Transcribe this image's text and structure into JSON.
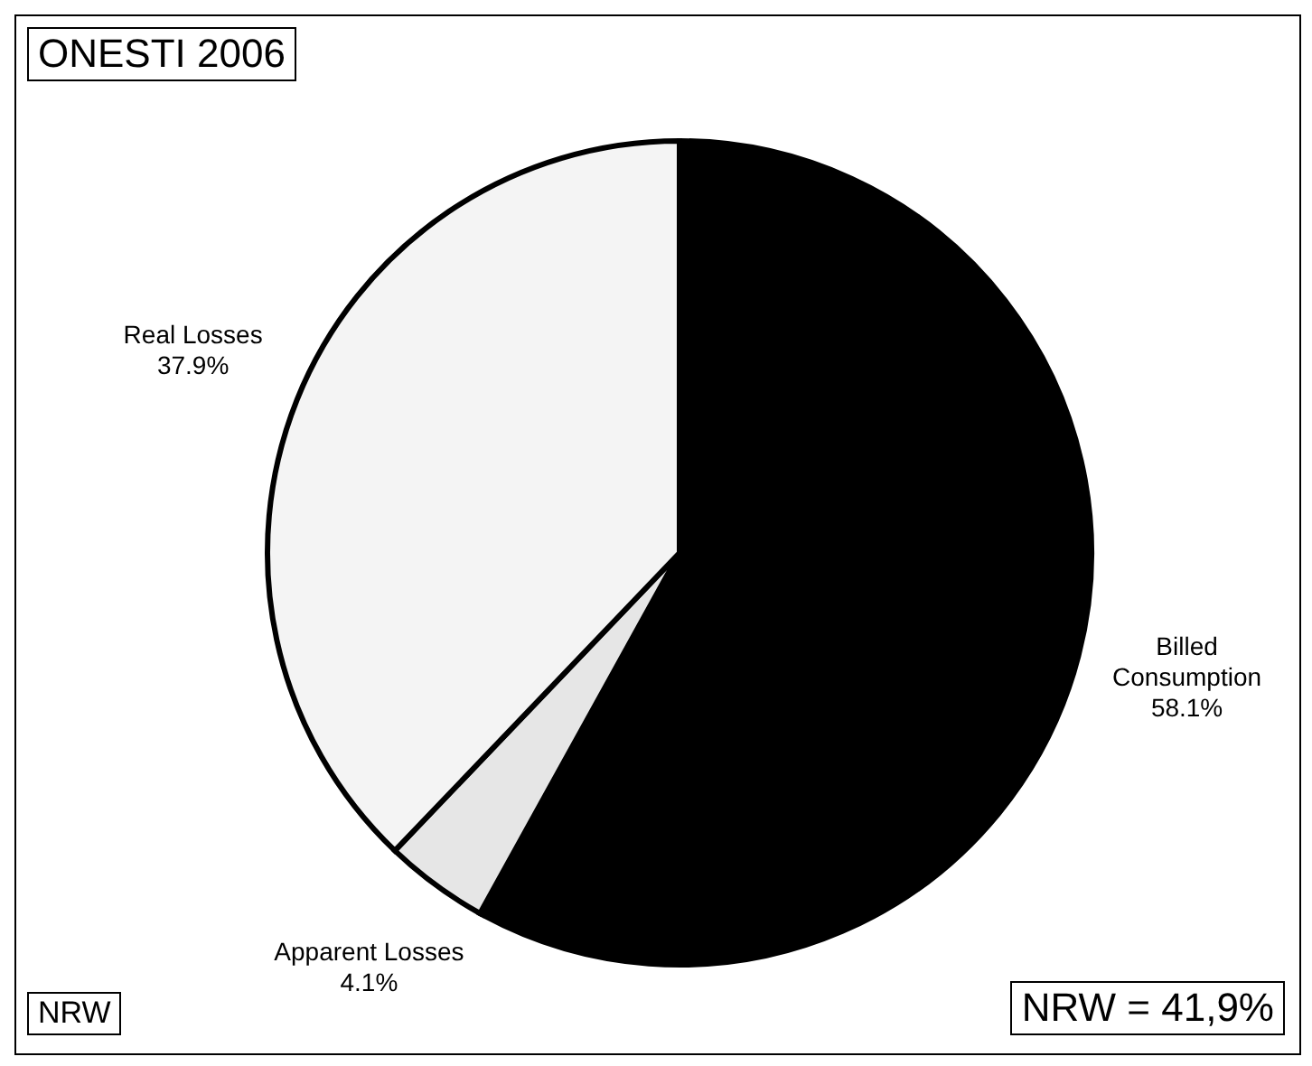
{
  "chart_data": {
    "type": "pie",
    "title": "ONESTI 2006",
    "categories": [
      "Billed Consumption",
      "Apparent Losses",
      "Real Losses"
    ],
    "values": [
      58.1,
      4.1,
      37.9
    ],
    "value_labels": [
      "58.1%",
      "4.1%",
      "37.9%"
    ],
    "colors": [
      "#000000",
      "#e6e6e6",
      "#f4f4f4"
    ],
    "annotations": [
      "NRW",
      "NRW = 41,9%"
    ]
  }
}
